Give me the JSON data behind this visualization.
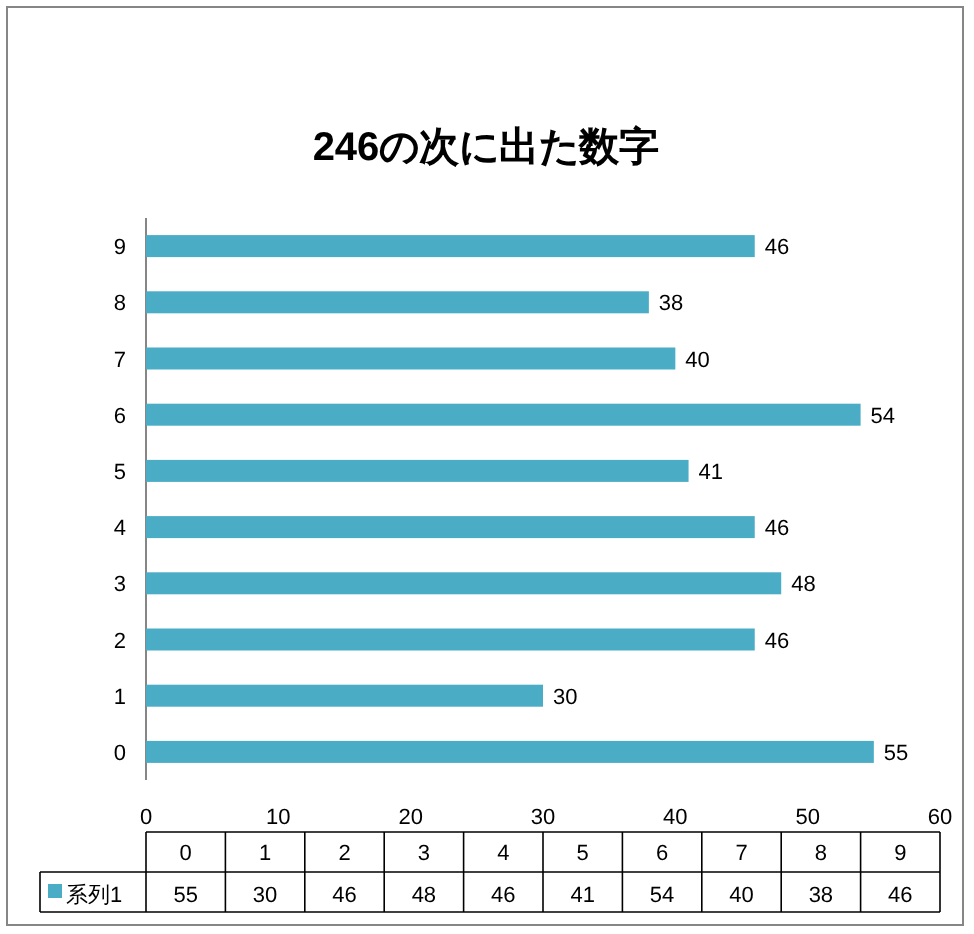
{
  "chart_data": {
    "type": "bar",
    "orientation": "horizontal",
    "title": "246の次に出た数字",
    "categories": [
      "9",
      "8",
      "7",
      "6",
      "5",
      "4",
      "3",
      "2",
      "1",
      "0"
    ],
    "series": [
      {
        "name": "系列1",
        "color": "#4bacc6",
        "values": [
          46,
          38,
          40,
          54,
          41,
          46,
          48,
          46,
          30,
          55
        ]
      }
    ],
    "xlim": [
      0,
      60
    ],
    "xticks": [
      0,
      10,
      20,
      30,
      40,
      50,
      60
    ],
    "data_labels": true,
    "legend": "bottom",
    "annotations": [
      "55",
      "30",
      "46",
      "48",
      "46",
      "41",
      "54",
      "40",
      "38",
      "46"
    ]
  }
}
